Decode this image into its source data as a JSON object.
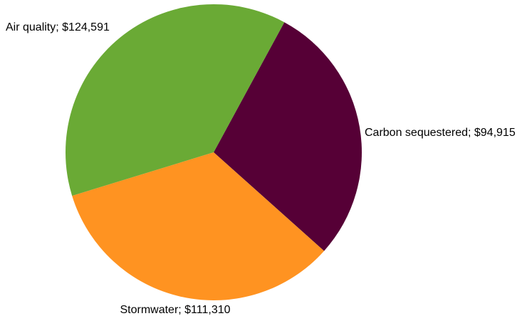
{
  "chart_data": {
    "type": "pie",
    "title": "",
    "legend": "none",
    "slices": [
      {
        "name": "Carbon sequestered",
        "value": 94915,
        "label": "Carbon sequestered; $94,915",
        "color": "#560036"
      },
      {
        "name": "Stormwater",
        "value": 111310,
        "label": "Stormwater; $111,310",
        "color": "#ff9321"
      },
      {
        "name": "Air quality",
        "value": 124591,
        "label": "Air quality; $124,591",
        "color": "#6aaa35"
      }
    ]
  }
}
